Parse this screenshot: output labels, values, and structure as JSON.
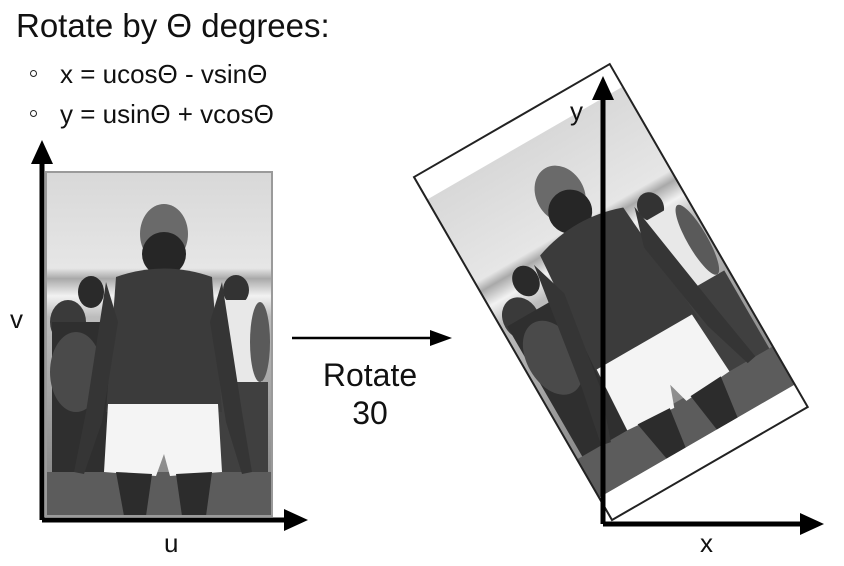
{
  "title": "Rotate by Θ degrees:",
  "formulas": [
    "x = ucosΘ - vsinΘ",
    "y = usinΘ + vcosΘ"
  ],
  "left_panel": {
    "x_axis_label": "u",
    "y_axis_label": "v"
  },
  "arrow_caption": {
    "line1": "Rotate",
    "line2": "30"
  },
  "right_panel": {
    "x_axis_label": "x",
    "y_axis_label": "y"
  }
}
